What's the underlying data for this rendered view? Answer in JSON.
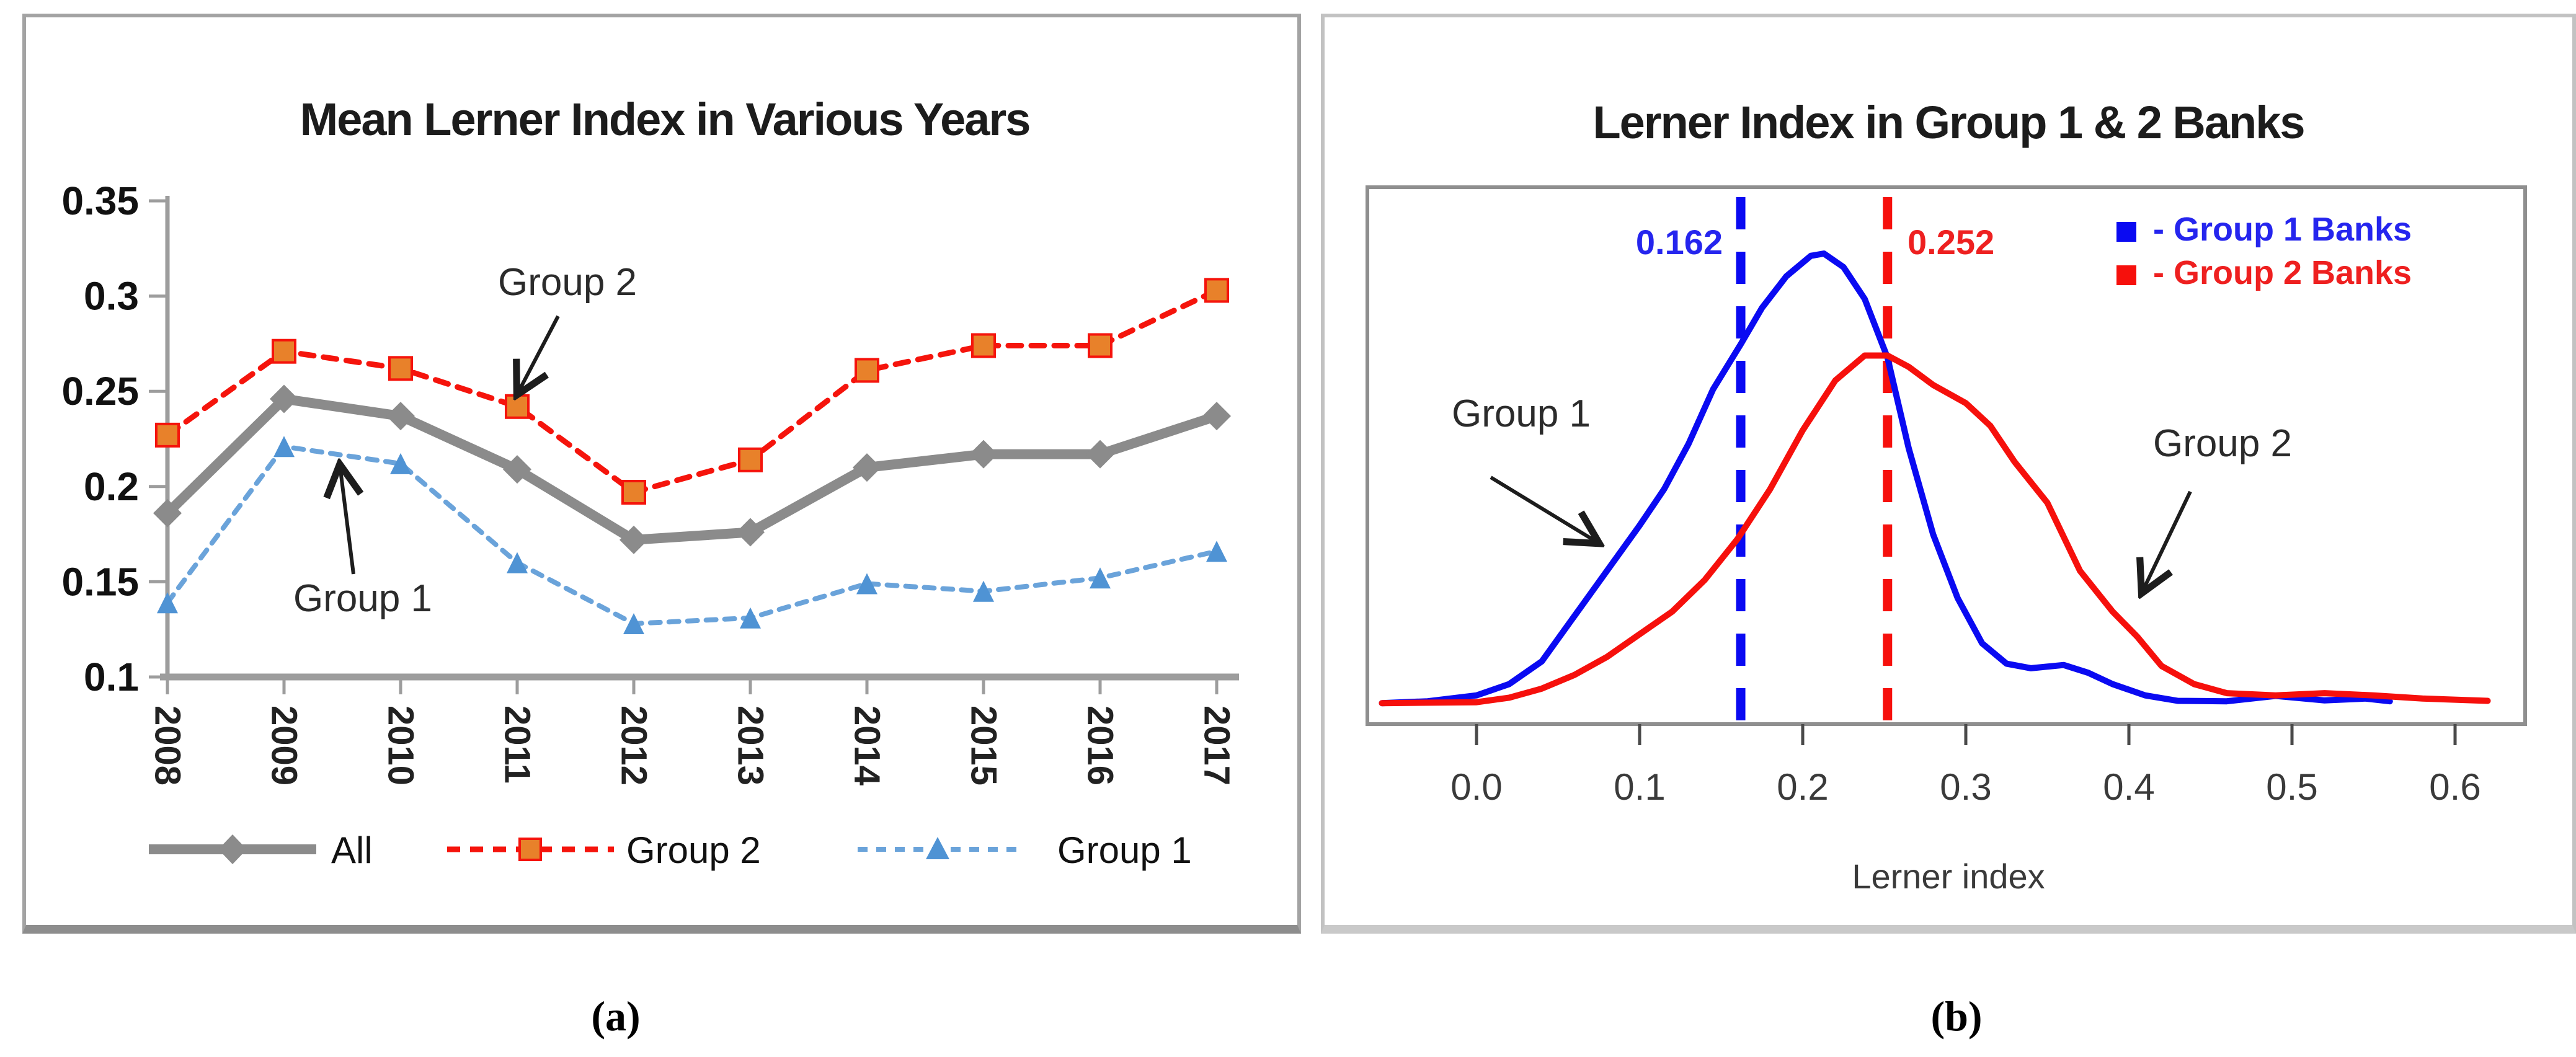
{
  "figure": {
    "caption_a": "(a)",
    "caption_b": "(b)"
  },
  "chart_data": [
    {
      "type": "line",
      "title": "Mean Lerner Index in Various Years",
      "categories": [
        "2008",
        "2009",
        "2010",
        "2011",
        "2012",
        "2013",
        "2014",
        "2015",
        "2016",
        "2017"
      ],
      "series": [
        {
          "name": "All",
          "values": [
            0.186,
            0.246,
            0.237,
            0.209,
            0.172,
            0.176,
            0.21,
            0.217,
            0.217,
            0.237
          ],
          "color": "#8b8b8b",
          "line": "solid-thick",
          "marker": "diamond",
          "marker_fill": "#8b8b8b"
        },
        {
          "name": "Group 2",
          "values": [
            0.227,
            0.271,
            0.262,
            0.242,
            0.197,
            0.214,
            0.261,
            0.274,
            0.274,
            0.303
          ],
          "color": "#f5140c",
          "line": "dashed",
          "marker": "square",
          "marker_fill": "#e8812a"
        },
        {
          "name": "Group 1",
          "values": [
            0.139,
            0.221,
            0.212,
            0.16,
            0.128,
            0.131,
            0.149,
            0.145,
            0.152,
            0.166
          ],
          "color": "#6aa3da",
          "line": "dashed",
          "marker": "triangle",
          "marker_fill": "#4f93d4"
        }
      ],
      "ylim": [
        0.1,
        0.35
      ],
      "yticks": [
        "0.35",
        "0.3",
        "0.25",
        "0.2",
        "0.15",
        "0.1"
      ],
      "grid": false,
      "legend_position": "bottom",
      "annotations": [
        {
          "text": "Group 2",
          "points_to": "Group 2 series near 2011"
        },
        {
          "text": "Group 1",
          "points_to": "Group 1 series near 2010"
        }
      ],
      "axis_color": "#9d9d9d"
    },
    {
      "type": "line",
      "subtype": "density",
      "title": "Lerner Index in Group 1 & 2 Banks",
      "xlabel": "Lerner index",
      "xticks": [
        "0.0",
        "0.1",
        "0.2",
        "0.3",
        "0.4",
        "0.5",
        "0.6"
      ],
      "xlim": [
        -0.067,
        0.643
      ],
      "legend_position": "top-right",
      "series": [
        {
          "name": "- Group 1 Banks",
          "color": "#0a0af2",
          "mean": 0.162,
          "mean_label": "0.162",
          "points": [
            [
              -0.058,
              0.008
            ],
            [
              -0.03,
              0.012
            ],
            [
              0,
              0.025
            ],
            [
              0.02,
              0.05
            ],
            [
              0.04,
              0.1
            ],
            [
              0.06,
              0.2
            ],
            [
              0.08,
              0.3
            ],
            [
              0.1,
              0.4
            ],
            [
              0.115,
              0.48
            ],
            [
              0.13,
              0.58
            ],
            [
              0.145,
              0.7
            ],
            [
              0.162,
              0.8
            ],
            [
              0.175,
              0.88
            ],
            [
              0.19,
              0.95
            ],
            [
              0.205,
              0.995
            ],
            [
              0.213,
              1.0
            ],
            [
              0.225,
              0.97
            ],
            [
              0.238,
              0.9
            ],
            [
              0.252,
              0.77
            ],
            [
              0.265,
              0.57
            ],
            [
              0.28,
              0.38
            ],
            [
              0.295,
              0.24
            ],
            [
              0.31,
              0.14
            ],
            [
              0.325,
              0.095
            ],
            [
              0.34,
              0.085
            ],
            [
              0.36,
              0.092
            ],
            [
              0.375,
              0.075
            ],
            [
              0.39,
              0.05
            ],
            [
              0.41,
              0.025
            ],
            [
              0.43,
              0.013
            ],
            [
              0.46,
              0.012
            ],
            [
              0.49,
              0.024
            ],
            [
              0.52,
              0.014
            ],
            [
              0.545,
              0.018
            ],
            [
              0.56,
              0.012
            ]
          ]
        },
        {
          "name": "- Group 2 Banks",
          "color": "#f6100c",
          "mean": 0.252,
          "mean_label": "0.252",
          "points": [
            [
              -0.058,
              0.008
            ],
            [
              0,
              0.01
            ],
            [
              0.02,
              0.02
            ],
            [
              0.04,
              0.04
            ],
            [
              0.06,
              0.07
            ],
            [
              0.08,
              0.11
            ],
            [
              0.1,
              0.16
            ],
            [
              0.12,
              0.21
            ],
            [
              0.14,
              0.28
            ],
            [
              0.16,
              0.37
            ],
            [
              0.18,
              0.48
            ],
            [
              0.2,
              0.61
            ],
            [
              0.22,
              0.72
            ],
            [
              0.238,
              0.775
            ],
            [
              0.252,
              0.775
            ],
            [
              0.265,
              0.75
            ],
            [
              0.28,
              0.71
            ],
            [
              0.3,
              0.67
            ],
            [
              0.315,
              0.62
            ],
            [
              0.33,
              0.54
            ],
            [
              0.35,
              0.45
            ],
            [
              0.37,
              0.3
            ],
            [
              0.39,
              0.21
            ],
            [
              0.405,
              0.155
            ],
            [
              0.42,
              0.09
            ],
            [
              0.44,
              0.05
            ],
            [
              0.46,
              0.03
            ],
            [
              0.49,
              0.025
            ],
            [
              0.52,
              0.03
            ],
            [
              0.55,
              0.025
            ],
            [
              0.58,
              0.018
            ],
            [
              0.62,
              0.013
            ]
          ]
        }
      ],
      "annotations": [
        {
          "text": "Group 1",
          "points_to": "left flank of blue density"
        },
        {
          "text": "Group 2",
          "points_to": "right flank of red density"
        }
      ],
      "box_color": "#8f8f8f"
    }
  ]
}
